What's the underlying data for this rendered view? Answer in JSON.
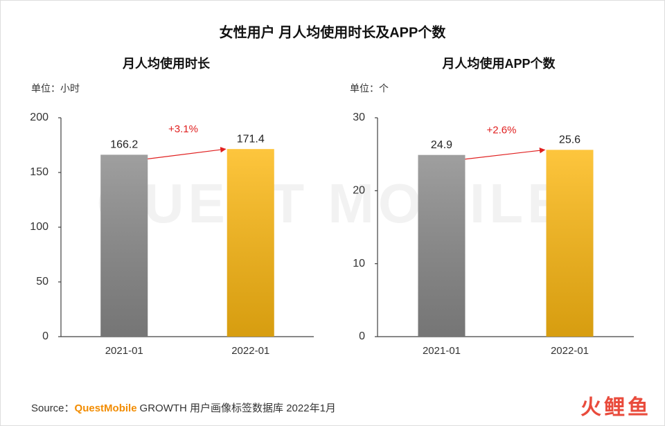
{
  "title": "女性用户 月人均使用时长及APP个数",
  "watermark": "QUEST MOBILE",
  "source": {
    "label": "Source：",
    "brand": "QuestMobile",
    "text": "GROWTH 用户画像标签数据库 2022年1月"
  },
  "logo": "火鲤鱼",
  "chart_data": [
    {
      "type": "bar",
      "title": "月人均使用时长",
      "unit": "单位：小时",
      "categories": [
        "2021-01",
        "2022-01"
      ],
      "values": [
        166.2,
        171.4
      ],
      "colors": [
        "#8a8a8a",
        "#fdb913"
      ],
      "ylim": [
        0,
        200
      ],
      "yticks": [
        0,
        50,
        100,
        150,
        200
      ],
      "annotation": "+3.1%",
      "annotation_color": "#e02020"
    },
    {
      "type": "bar",
      "title": "月人均使用APP个数",
      "unit": "单位：个",
      "categories": [
        "2021-01",
        "2022-01"
      ],
      "values": [
        24.9,
        25.6
      ],
      "colors": [
        "#8a8a8a",
        "#fdb913"
      ],
      "ylim": [
        0,
        30
      ],
      "yticks": [
        0,
        10,
        20,
        30
      ],
      "annotation": "+2.6%",
      "annotation_color": "#e02020"
    }
  ]
}
